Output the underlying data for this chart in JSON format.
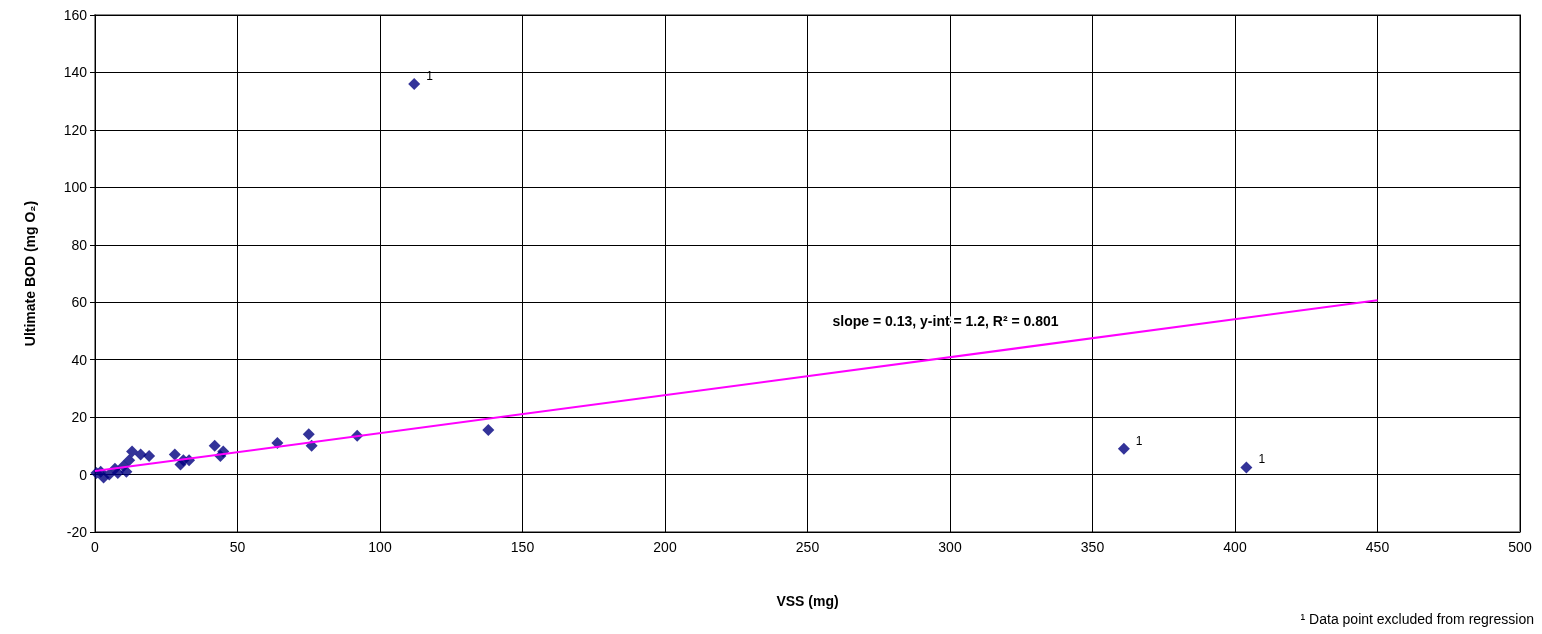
{
  "chart_data": {
    "type": "scatter",
    "xlabel": "VSS (mg)",
    "ylabel": "Ultimate BOD (mg O₂)",
    "xlim": [
      0,
      500
    ],
    "xticks": [
      0,
      50,
      100,
      150,
      200,
      250,
      300,
      350,
      400,
      450,
      500
    ],
    "ylim": [
      -20,
      160
    ],
    "yticks": [
      -20,
      0,
      20,
      40,
      60,
      80,
      100,
      120,
      140,
      160
    ],
    "grid": true,
    "marker": "diamond",
    "series": [
      {
        "color": "#000080",
        "x": [
          0.5,
          2,
          3,
          5,
          7,
          8,
          10,
          11,
          12,
          13,
          16,
          19,
          28,
          30,
          31,
          33,
          42,
          44,
          45,
          64,
          75,
          76,
          92,
          138,
          112,
          361,
          404
        ],
        "values": [
          0.5,
          1,
          -1,
          0,
          2,
          0.5,
          3,
          1,
          5,
          8,
          7,
          6.5,
          7,
          3.5,
          5,
          5,
          10,
          6.5,
          8,
          11,
          14,
          10,
          13.5,
          15.5,
          136,
          9,
          2.5
        ]
      },
      {
        "type": "line",
        "color": "#ff00ff",
        "marker": "none",
        "x": [
          0,
          450
        ],
        "values": [
          1.2,
          60.7
        ]
      }
    ],
    "annotations": [
      "slope = 0.13, y-int = 1.2, R² = 0.801",
      {
        "text": "1",
        "x": 112,
        "y": 136
      },
      {
        "text": "1",
        "x": 361,
        "y": 9
      },
      {
        "text": "1",
        "x": 404,
        "y": 2.5
      },
      "¹ Data point excluded from regression"
    ]
  }
}
